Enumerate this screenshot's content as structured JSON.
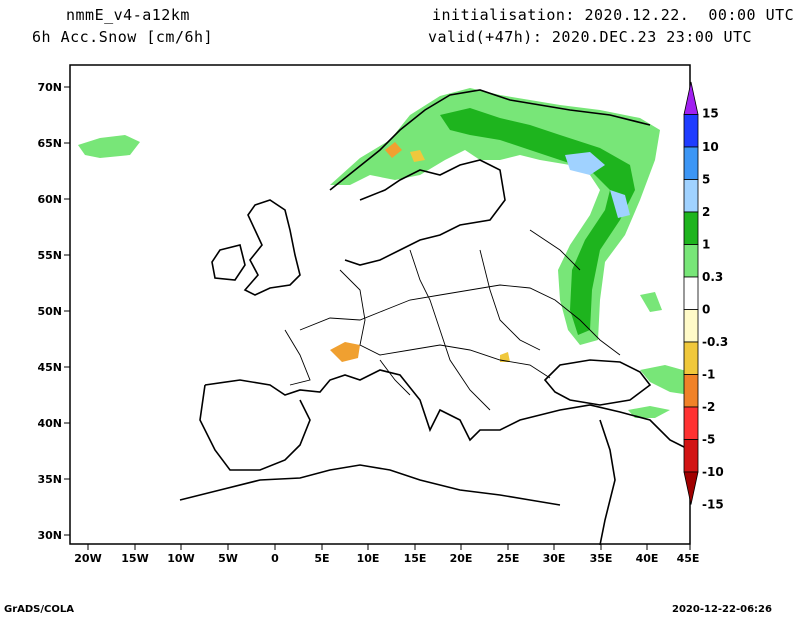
{
  "header": {
    "model": "nmmE_v4-a12km",
    "field": "6h Acc.Snow [cm/6h]",
    "init": "initialisation: 2020.12.22.  00:00 UTC",
    "valid": "valid(+47h): 2020.DEC.23 23:00 UTC"
  },
  "footer": {
    "left": "GrADS/COLA",
    "right": "2020-12-22-06:26"
  },
  "axes": {
    "lat_labels": [
      "70N",
      "65N",
      "60N",
      "55N",
      "50N",
      "45N",
      "40N",
      "35N",
      "30N"
    ],
    "lon_labels": [
      "20W",
      "15W",
      "10W",
      "5W",
      "0",
      "5E",
      "10E",
      "15E",
      "20E",
      "25E",
      "30E",
      "35E",
      "40E",
      "45E"
    ]
  },
  "legend": {
    "labels": [
      "15",
      "10",
      "5",
      "2",
      "1",
      "0.3",
      "0",
      "-0.3",
      "-1",
      "-2",
      "-5",
      "-10",
      "-15"
    ],
    "colors": [
      "#a020f0",
      "#1e3cff",
      "#3c96f5",
      "#a0d2ff",
      "#1eb41e",
      "#78e678",
      "#ffffff",
      "#fffac8",
      "#f0c83c",
      "#f08228",
      "#ff3232",
      "#d21414",
      "#a00000"
    ]
  },
  "colors": {
    "snow_light": "#78e678",
    "snow_mid": "#1eb41e",
    "snow_blue": "#a0d2ff",
    "melt_orange": "#f0a030"
  }
}
